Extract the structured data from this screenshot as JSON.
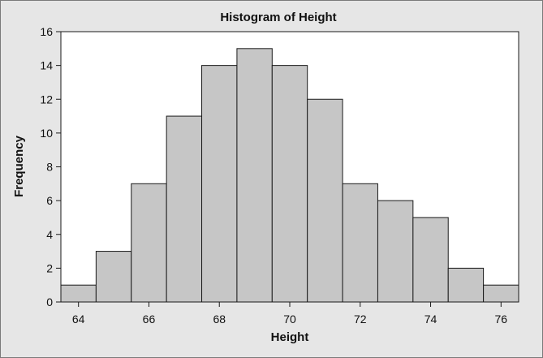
{
  "chart_data": {
    "type": "bar",
    "title": "Histogram of Height",
    "xlabel": "Height",
    "ylabel": "Frequency",
    "bin_width": 1,
    "bins": [
      {
        "center": 64,
        "value": 1
      },
      {
        "center": 65,
        "value": 3
      },
      {
        "center": 66,
        "value": 7
      },
      {
        "center": 67,
        "value": 11
      },
      {
        "center": 68,
        "value": 14
      },
      {
        "center": 69,
        "value": 15
      },
      {
        "center": 70,
        "value": 14
      },
      {
        "center": 71,
        "value": 12
      },
      {
        "center": 72,
        "value": 7
      },
      {
        "center": 73,
        "value": 6
      },
      {
        "center": 74,
        "value": 5
      },
      {
        "center": 75,
        "value": 2
      },
      {
        "center": 76,
        "value": 1
      }
    ],
    "xlim": [
      63.5,
      76.5
    ],
    "ylim": [
      0,
      16
    ],
    "x_ticks": [
      "64",
      "66",
      "68",
      "70",
      "72",
      "74",
      "76"
    ],
    "y_ticks": [
      "0",
      "2",
      "4",
      "6",
      "8",
      "10",
      "12",
      "14",
      "16"
    ],
    "grid": false,
    "colors": {
      "bar_fill": "#c6c6c6",
      "bar_stroke": "#1a1a1a",
      "plot_background": "#ffffff",
      "figure_background": "#e6e6e6"
    }
  }
}
